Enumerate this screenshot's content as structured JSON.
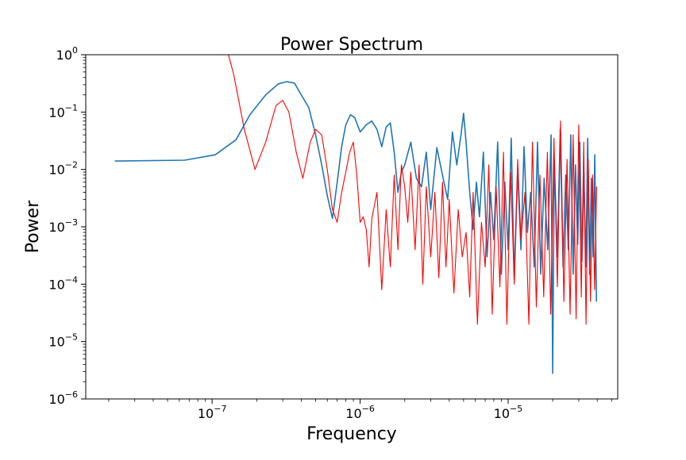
{
  "chart_data": {
    "type": "line",
    "title": "Power Spectrum",
    "xlabel": "Frequency",
    "ylabel": "Power",
    "xscale": "log",
    "yscale": "log",
    "xlim": [
      1.4e-08,
      5.5e-05
    ],
    "ylim": [
      1e-06,
      1
    ],
    "grid": false,
    "legend": "none",
    "x_ticks": [
      {
        "value": 1e-07,
        "base": "10",
        "exp": "−7"
      },
      {
        "value": 1e-06,
        "base": "10",
        "exp": "−6"
      },
      {
        "value": 1e-05,
        "base": "10",
        "exp": "−5"
      }
    ],
    "y_ticks": [
      {
        "value": 1e-06,
        "base": "10",
        "exp": "−6"
      },
      {
        "value": 1e-05,
        "base": "10",
        "exp": "−5"
      },
      {
        "value": 0.0001,
        "base": "10",
        "exp": "−4"
      },
      {
        "value": 0.001,
        "base": "10",
        "exp": "−3"
      },
      {
        "value": 0.01,
        "base": "10",
        "exp": "−2"
      },
      {
        "value": 0.1,
        "base": "10",
        "exp": "−1"
      },
      {
        "value": 1,
        "base": "10",
        "exp": "0"
      }
    ],
    "series": [
      {
        "color": "#1f77b4",
        "x": [
          2.2e-08,
          6.5e-08,
          1.05e-07,
          1.45e-07,
          1.8e-07,
          2.3e-07,
          2.8e-07,
          3.2e-07,
          3.6e-07,
          4e-07,
          4.5e-07,
          5e-07,
          5.5e-07,
          6e-07,
          6.5e-07,
          7e-07,
          7.5e-07,
          8e-07,
          8.6e-07,
          9.2e-07,
          1e-06,
          1.1e-06,
          1.2e-06,
          1.3e-06,
          1.4e-06,
          1.5e-06,
          1.6e-06,
          1.7e-06,
          1.8e-06,
          1.9e-06,
          2e-06,
          2.2e-06,
          2.4e-06,
          2.6e-06,
          2.8e-06,
          3e-06,
          3.3e-06,
          3.6e-06,
          3.9e-06,
          4.2e-06,
          4.5e-06,
          4.8e-06,
          5e-06,
          5.2e-06,
          5.5e-06,
          5.8e-06,
          6.1e-06,
          6.4e-06,
          6.8e-06,
          7.2e-06,
          7.6e-06,
          8e-06,
          8.5e-06,
          9e-06,
          9.5e-06,
          1e-05,
          1.05e-05,
          1.1e-05,
          1.16e-05,
          1.22e-05,
          1.28e-05,
          1.35e-05,
          1.42e-05,
          1.5e-05,
          1.58e-05,
          1.66e-05,
          1.75e-05,
          1.85e-05,
          1.95e-05,
          2e-05,
          2.05e-05,
          2.15e-05,
          2.25e-05,
          2.35e-05,
          2.45e-05,
          2.55e-05,
          2.65e-05,
          2.75e-05,
          2.85e-05,
          2.95e-05,
          3.05e-05,
          3.15e-05,
          3.25e-05,
          3.35e-05,
          3.45e-05,
          3.55e-05,
          3.65e-05,
          3.75e-05,
          3.85e-05,
          3.95e-05
        ],
        "y": [
          0.014,
          0.0145,
          0.018,
          0.033,
          0.09,
          0.2,
          0.31,
          0.34,
          0.32,
          0.2,
          0.12,
          0.04,
          0.012,
          0.0035,
          0.0014,
          0.006,
          0.025,
          0.06,
          0.09,
          0.08,
          0.045,
          0.06,
          0.07,
          0.05,
          0.025,
          0.055,
          0.065,
          0.02,
          0.004,
          0.009,
          0.012,
          0.03,
          0.007,
          0.005,
          0.02,
          0.002,
          0.024,
          0.008,
          0.003,
          0.045,
          0.012,
          0.04,
          0.095,
          0.03,
          0.004,
          0.0009,
          0.006,
          0.0015,
          0.02,
          0.0003,
          0.004,
          0.0006,
          0.03,
          0.00015,
          0.006,
          0.0004,
          0.035,
          0.00012,
          0.01,
          0.0004,
          0.025,
          0.0008,
          0.004,
          0.0002,
          0.03,
          0.00015,
          0.007,
          0.0004,
          0.04,
          2.8e-06,
          0.015,
          0.0003,
          0.05,
          0.0002,
          0.008,
          0.0004,
          0.04,
          0.00015,
          0.012,
          0.0005,
          0.03,
          0.00025,
          0.009,
          0.0002,
          0.035,
          0.00015,
          0.007,
          0.0003,
          0.018,
          5e-05
        ]
      },
      {
        "color": "#ff0000",
        "x": [
          1.2e-07,
          1.4e-07,
          1.65e-07,
          1.95e-07,
          2.3e-07,
          2.7e-07,
          3e-07,
          3.3e-07,
          3.7e-07,
          4.1e-07,
          4.6e-07,
          5e-07,
          5.5e-07,
          6e-07,
          6.5e-07,
          7e-07,
          7.5e-07,
          8e-07,
          8.5e-07,
          9e-07,
          9.5e-07,
          1e-06,
          1.05e-06,
          1.1e-06,
          1.15e-06,
          1.2e-06,
          1.3e-06,
          1.4e-06,
          1.5e-06,
          1.6e-06,
          1.7e-06,
          1.8e-06,
          1.9e-06,
          2e-06,
          2.1e-06,
          2.2e-06,
          2.35e-06,
          2.5e-06,
          2.65e-06,
          2.8e-06,
          3e-06,
          3.2e-06,
          3.4e-06,
          3.6e-06,
          3.8e-06,
          4e-06,
          4.3e-06,
          4.6e-06,
          4.9e-06,
          5.2e-06,
          5.5e-06,
          5.8e-06,
          6.2e-06,
          6.6e-06,
          7e-06,
          7.4e-06,
          7.8e-06,
          8.3e-06,
          8.8e-06,
          9.3e-06,
          9.8e-06,
          1.04e-05,
          1.1e-05,
          1.16e-05,
          1.22e-05,
          1.3e-05,
          1.38e-05,
          1.46e-05,
          1.55e-05,
          1.64e-05,
          1.74e-05,
          1.84e-05,
          1.94e-05,
          2.04e-05,
          2.15e-05,
          2.26e-05,
          2.38e-05,
          2.5e-05,
          2.62e-05,
          2.75e-05,
          2.88e-05,
          3e-05,
          3.12e-05,
          3.24e-05,
          3.36e-05,
          3.48e-05,
          3.6e-05,
          3.72e-05,
          3.84e-05,
          3.96e-05
        ],
        "y": [
          2.0,
          0.45,
          0.05,
          0.01,
          0.03,
          0.13,
          0.16,
          0.1,
          0.02,
          0.007,
          0.03,
          0.05,
          0.04,
          0.01,
          0.002,
          0.0012,
          0.004,
          0.009,
          0.02,
          0.03,
          0.008,
          0.0012,
          0.0015,
          0.0009,
          0.0002,
          0.0014,
          0.004,
          8e-05,
          0.002,
          0.0002,
          0.008,
          0.0004,
          0.012,
          0.005,
          0.0012,
          0.009,
          0.0004,
          0.012,
          0.0001,
          0.005,
          0.0003,
          0.004,
          0.00013,
          0.006,
          0.0002,
          0.003,
          7e-05,
          0.002,
          0.0003,
          0.0008,
          6e-05,
          0.004,
          2e-05,
          0.0012,
          0.0002,
          0.012,
          3e-05,
          0.005,
          9e-05,
          0.02,
          2e-05,
          0.009,
          0.0001,
          0.015,
          0.0006,
          0.004,
          2e-05,
          0.03,
          4e-05,
          0.008,
          6e-05,
          0.02,
          3e-05,
          0.035,
          9e-05,
          0.07,
          5e-05,
          0.015,
          3e-05,
          0.04,
          2.5e-05,
          0.06,
          6e-05,
          0.03,
          2e-05,
          0.015,
          5e-05,
          0.008,
          8e-05,
          0.005
        ]
      }
    ]
  }
}
